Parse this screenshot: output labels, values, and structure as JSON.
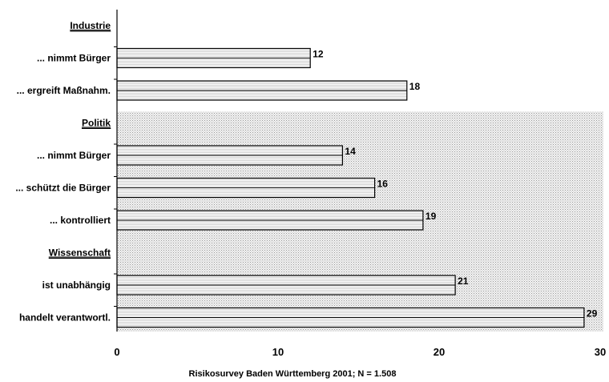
{
  "chart_data": {
    "type": "bar",
    "orientation": "horizontal",
    "groups": [
      {
        "label": "Industrie",
        "items": [
          {
            "label": "... nimmt Bürger",
            "value": 12
          },
          {
            "label": "... ergreift Maßnahm.",
            "value": 18
          }
        ]
      },
      {
        "label": "Politik",
        "items": [
          {
            "label": "... nimmt Bürger",
            "value": 14
          },
          {
            "label": "... schützt die Bürger",
            "value": 16
          },
          {
            "label": "... kontrolliert",
            "value": 19
          }
        ]
      },
      {
        "label": "Wissenschaft",
        "items": [
          {
            "label": "ist unabhängig",
            "value": 21
          },
          {
            "label": "handelt verantwortl.",
            "value": 29
          }
        ]
      }
    ],
    "xlim": [
      0,
      30
    ],
    "xticks": [
      0,
      10,
      20,
      30
    ],
    "footnote": "Risikosurvey Baden Württemberg 2001;  N = 1.508",
    "bar_color": "#ffffff",
    "background_pattern_color": "#c8c8c8"
  }
}
